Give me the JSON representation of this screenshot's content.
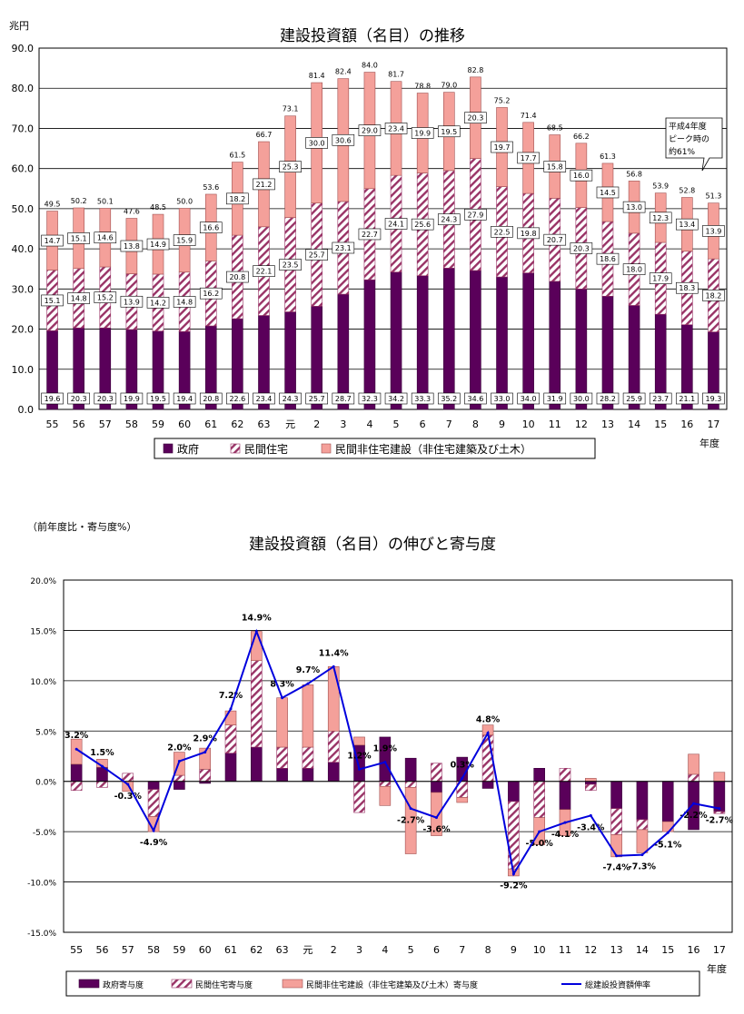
{
  "chart_data": [
    {
      "type": "bar",
      "title": "建設投資額（名目）の推移",
      "ylabel": "兆円",
      "xlabel": "年度",
      "ylim": [
        0,
        90
      ],
      "ytick_labels": [
        "0.0",
        "10.0",
        "20.0",
        "30.0",
        "40.0",
        "50.0",
        "60.0",
        "70.0",
        "80.0",
        "90.0"
      ],
      "stacked": true,
      "grid": true,
      "legend_position": "bottom",
      "categories": [
        "55",
        "56",
        "57",
        "58",
        "59",
        "60",
        "61",
        "62",
        "63",
        "元",
        "2",
        "3",
        "4",
        "5",
        "6",
        "7",
        "8",
        "9",
        "10",
        "11",
        "12",
        "13",
        "14",
        "15",
        "16",
        "17"
      ],
      "series": [
        {
          "name": "政府",
          "color": "#5a005a",
          "values": [
            19.6,
            20.3,
            20.3,
            19.9,
            19.5,
            19.4,
            20.8,
            22.6,
            23.4,
            24.3,
            25.7,
            28.7,
            32.3,
            34.2,
            33.3,
            35.2,
            34.6,
            33.0,
            34.0,
            31.9,
            30.0,
            28.2,
            25.9,
            23.7,
            21.1,
            19.3
          ],
          "labels": [
            "19.6",
            "20.3",
            "20.3",
            "19.9",
            "19.5",
            "19.4",
            "20.8",
            "22.6",
            "23.4",
            "24.3",
            "25.7",
            "28.7",
            "32.3",
            "34.2",
            "33.3",
            "35.2",
            "34.6",
            "33.0",
            "34.0",
            "31.9",
            "30.0",
            "28.2",
            "25.9",
            "23.7",
            "21.1",
            "19.3"
          ]
        },
        {
          "name": "民間住宅",
          "color": "#993366",
          "values": [
            15.1,
            14.8,
            15.2,
            13.9,
            14.2,
            14.8,
            16.2,
            20.8,
            22.1,
            23.5,
            25.7,
            23.1,
            22.7,
            24.1,
            25.6,
            24.3,
            27.9,
            22.5,
            19.8,
            20.7,
            20.3,
            18.6,
            18.0,
            17.9,
            18.3,
            18.2
          ],
          "labels": [
            "15.1",
            "14.8",
            "15.2",
            "13.9",
            "14.2",
            "14.8",
            "16.2",
            "20.8",
            "22.1",
            "23.5",
            "25.7",
            "23.1",
            "22.7",
            "24.1",
            "25.6",
            "24.3",
            "27.9",
            "22.5",
            "19.8",
            "20.7",
            "20.3",
            "18.6",
            "18.0",
            "17.9",
            "18.3",
            "18.2"
          ]
        },
        {
          "name": "民間非住宅建設（非住宅建築及び土木）",
          "color": "#f4a09a",
          "values": [
            14.7,
            15.1,
            14.6,
            13.8,
            14.9,
            15.9,
            16.6,
            18.2,
            21.2,
            25.3,
            30.0,
            30.6,
            29.0,
            23.4,
            19.9,
            19.5,
            20.3,
            19.7,
            17.7,
            15.8,
            16.0,
            14.5,
            13.0,
            12.3,
            13.4,
            13.9
          ],
          "labels": [
            "14.7",
            "15.1",
            "14.6",
            "13.8",
            "14.9",
            "15.9",
            "16.6",
            "18.2",
            "21.2",
            "25.3",
            "30.0",
            "30.6",
            "29.0",
            "23.4",
            "19.9",
            "19.5",
            "20.3",
            "19.7",
            "17.7",
            "15.8",
            "16.0",
            "14.5",
            "13.0",
            "12.3",
            "13.4",
            "13.9"
          ]
        }
      ],
      "totals": [
        49.5,
        50.2,
        50.1,
        47.6,
        48.5,
        50.0,
        53.6,
        61.5,
        66.7,
        73.1,
        81.4,
        82.4,
        84.0,
        81.7,
        78.8,
        79.0,
        82.8,
        75.2,
        71.4,
        68.5,
        66.2,
        61.3,
        56.8,
        53.9,
        52.8,
        51.3
      ],
      "total_labels": [
        "49.5",
        "50.2",
        "50.1",
        "47.6",
        "48.5",
        "50.0",
        "53.6",
        "61.5",
        "66.7",
        "73.1",
        "81.4",
        "82.4",
        "84.0",
        "81.7",
        "78.8",
        "79.0",
        "82.8",
        "75.2",
        "71.4",
        "68.5",
        "66.2",
        "61.3",
        "56.8",
        "53.9",
        "52.8",
        "51.3"
      ],
      "annotation": [
        "平成4年度",
        "ピーク時の",
        "約61%"
      ]
    },
    {
      "type": "bar+line",
      "title": "建設投資額（名目）の伸びと寄与度",
      "ylabel": "（前年度比・寄与度%）",
      "xlabel": "年度",
      "ylim": [
        -15,
        20
      ],
      "ytick_labels": [
        "-15.0%",
        "-10.0%",
        "-5.0%",
        "0.0%",
        "5.0%",
        "10.0%",
        "15.0%",
        "20.0%"
      ],
      "grid": true,
      "legend_position": "bottom",
      "categories": [
        "55",
        "56",
        "57",
        "58",
        "59",
        "60",
        "61",
        "62",
        "63",
        "元",
        "2",
        "3",
        "4",
        "5",
        "6",
        "7",
        "8",
        "9",
        "10",
        "11",
        "12",
        "13",
        "14",
        "15",
        "16",
        "17"
      ],
      "series": [
        {
          "name": "政府寄与度",
          "color": "#5a005a",
          "values": [
            1.7,
            1.4,
            0.0,
            -0.8,
            -0.8,
            -0.2,
            2.8,
            3.4,
            1.3,
            1.3,
            1.9,
            3.6,
            4.4,
            2.3,
            -1.1,
            2.4,
            -0.7,
            -2.0,
            1.3,
            -2.8,
            -0.3,
            -2.7,
            -3.8,
            -4.0,
            -4.8,
            -3.0
          ]
        },
        {
          "name": "民間住宅寄与度",
          "color": "#993366",
          "values": [
            -0.9,
            -0.6,
            0.8,
            -2.7,
            0.6,
            1.2,
            2.8,
            8.6,
            2.1,
            2.1,
            3.1,
            -3.1,
            -0.5,
            -0.6,
            1.8,
            -1.6,
            4.6,
            -6.7,
            -3.6,
            1.3,
            -0.6,
            -2.6,
            -1.0,
            0.0,
            0.7,
            -0.2
          ]
        },
        {
          "name": "民間非住宅建設（非住宅建築及び土木）寄与度",
          "color": "#f4a09a",
          "values": [
            2.5,
            0.8,
            -1.0,
            -1.5,
            2.3,
            2.1,
            1.4,
            2.9,
            4.9,
            6.2,
            6.4,
            0.8,
            -1.9,
            -6.6,
            -4.3,
            -0.5,
            1.0,
            -0.7,
            -2.7,
            -2.6,
            0.3,
            -2.2,
            -2.3,
            -1.0,
            2.0,
            0.9
          ]
        }
      ],
      "line": {
        "name": "総建設投資額伸率",
        "color": "#0000dd",
        "values": [
          3.2,
          1.5,
          -0.3,
          -4.9,
          2.0,
          2.9,
          7.2,
          14.9,
          8.3,
          9.7,
          11.4,
          1.2,
          1.9,
          -2.7,
          -3.6,
          0.3,
          4.8,
          -9.2,
          -5.0,
          -4.1,
          -3.4,
          -7.4,
          -7.3,
          -5.1,
          -2.2,
          -2.7
        ],
        "labels": [
          "3.2%",
          "1.5%",
          "-0.3%",
          "-4.9%",
          "2.0%",
          "2.9%",
          "7.2%",
          "14.9%",
          "8.3%",
          "9.7%",
          "11.4%",
          "1.2%",
          "1.9%",
          "-2.7%",
          "-3.6%",
          "0.3%",
          "4.8%",
          "-9.2%",
          "-5.0%",
          "-4.1%",
          "-3.4%",
          "-7.4%",
          "-7.3%",
          "-5.1%",
          "-2.2%",
          "-2.7%"
        ]
      }
    }
  ]
}
